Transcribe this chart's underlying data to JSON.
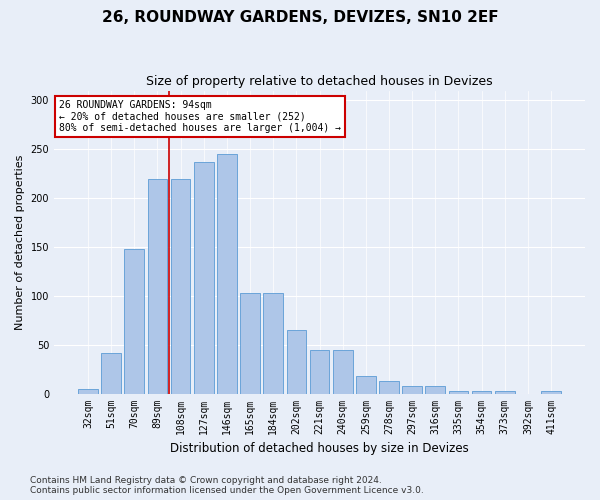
{
  "title": "26, ROUNDWAY GARDENS, DEVIZES, SN10 2EF",
  "subtitle": "Size of property relative to detached houses in Devizes",
  "xlabel": "Distribution of detached houses by size in Devizes",
  "ylabel": "Number of detached properties",
  "categories": [
    "32sqm",
    "51sqm",
    "70sqm",
    "89sqm",
    "108sqm",
    "127sqm",
    "146sqm",
    "165sqm",
    "184sqm",
    "202sqm",
    "221sqm",
    "240sqm",
    "259sqm",
    "278sqm",
    "297sqm",
    "316sqm",
    "335sqm",
    "354sqm",
    "373sqm",
    "392sqm",
    "411sqm"
  ],
  "values": [
    5,
    42,
    148,
    220,
    220,
    237,
    245,
    103,
    103,
    65,
    45,
    45,
    18,
    13,
    8,
    8,
    3,
    3,
    3,
    0,
    3
  ],
  "bar_color": "#aec6e8",
  "bar_edge_color": "#5b9bd5",
  "annotation_line1": "26 ROUNDWAY GARDENS: 94sqm",
  "annotation_line2": "← 20% of detached houses are smaller (252)",
  "annotation_line3": "80% of semi-detached houses are larger (1,004) →",
  "annotation_box_color": "#ffffff",
  "annotation_box_edge_color": "#cc0000",
  "vline_color": "#cc0000",
  "footer_text": "Contains HM Land Registry data © Crown copyright and database right 2024.\nContains public sector information licensed under the Open Government Licence v3.0.",
  "background_color": "#e8eef8",
  "plot_background_color": "#e8eef8",
  "ylim": [
    0,
    310
  ],
  "yticks": [
    0,
    50,
    100,
    150,
    200,
    250,
    300
  ],
  "title_fontsize": 11,
  "subtitle_fontsize": 9,
  "xlabel_fontsize": 8.5,
  "ylabel_fontsize": 8,
  "tick_fontsize": 7,
  "footer_fontsize": 6.5,
  "vline_index": 3.5
}
